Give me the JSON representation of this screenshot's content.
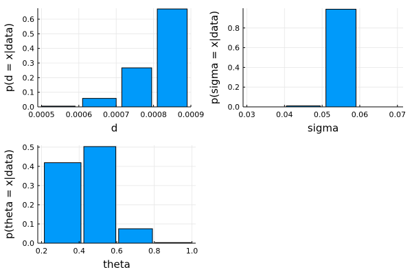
{
  "chart_data": [
    {
      "type": "bar",
      "xlabel": "d",
      "ylabel": "p(d = x|data)",
      "bars": [
        {
          "from": 0.0005,
          "to": 0.00059,
          "value": 0.005
        },
        {
          "from": 0.00061,
          "to": 0.0007,
          "value": 0.058
        },
        {
          "from": 0.000715,
          "to": 0.000795,
          "value": 0.267
        },
        {
          "from": 0.00081,
          "to": 0.00089,
          "value": 0.67
        }
      ],
      "xlim": [
        0.00049,
        0.0009
      ],
      "ylim": [
        0,
        0.675
      ],
      "xticks": [
        0.0005,
        0.0006,
        0.0007,
        0.0008,
        0.0009
      ],
      "xtick_labels": [
        "0.0005",
        "0.0006",
        "0.0007",
        "0.0008",
        "0.0009"
      ],
      "yticks": [
        0,
        0.1,
        0.2,
        0.3,
        0.4,
        0.5,
        0.6
      ],
      "ytick_labels": [
        "0.0",
        "0.1",
        "0.2",
        "0.3",
        "0.4",
        "0.5",
        "0.6"
      ],
      "bar_color": "#009AFA",
      "grid": true,
      "legend": "none"
    },
    {
      "type": "bar",
      "xlabel": "sigma",
      "ylabel": "p(sigma = x|data)",
      "bars": [
        {
          "from": 0.03,
          "to": 0.0395,
          "value": 0.0
        },
        {
          "from": 0.0405,
          "to": 0.0495,
          "value": 0.01
        },
        {
          "from": 0.051,
          "to": 0.059,
          "value": 0.99
        },
        {
          "from": 0.0605,
          "to": 0.07,
          "value": 0.0
        }
      ],
      "xlim": [
        0.029,
        0.0715
      ],
      "ylim": [
        0,
        1.0
      ],
      "xticks": [
        0.03,
        0.04,
        0.05,
        0.06,
        0.07
      ],
      "xtick_labels": [
        "0.03",
        "0.04",
        "0.05",
        "0.06",
        "0.07"
      ],
      "yticks": [
        0,
        0.2,
        0.4,
        0.6,
        0.8
      ],
      "ytick_labels": [
        "0.0",
        "0.2",
        "0.4",
        "0.6",
        "0.8"
      ],
      "bar_color": "#009AFA",
      "grid": true,
      "legend": "none"
    },
    {
      "type": "bar",
      "xlabel": "theta",
      "ylabel": "p(theta = x|data)",
      "bars": [
        {
          "from": 0.215,
          "to": 0.41,
          "value": 0.419
        },
        {
          "from": 0.425,
          "to": 0.595,
          "value": 0.503
        },
        {
          "from": 0.61,
          "to": 0.79,
          "value": 0.075
        },
        {
          "from": 0.805,
          "to": 0.995,
          "value": 0.003
        }
      ],
      "xlim": [
        0.18,
        1.02
      ],
      "ylim": [
        0,
        0.51
      ],
      "xticks": [
        0.2,
        0.4,
        0.6,
        0.8,
        1.0
      ],
      "xtick_labels": [
        "0.2",
        "0.4",
        "0.6",
        "0.8",
        "1.0"
      ],
      "yticks": [
        0,
        0.1,
        0.2,
        0.3,
        0.4,
        0.5
      ],
      "ytick_labels": [
        "0.0",
        "0.1",
        "0.2",
        "0.3",
        "0.4",
        "0.5"
      ],
      "bar_color": "#009AFA",
      "grid": true,
      "legend": "none"
    }
  ]
}
